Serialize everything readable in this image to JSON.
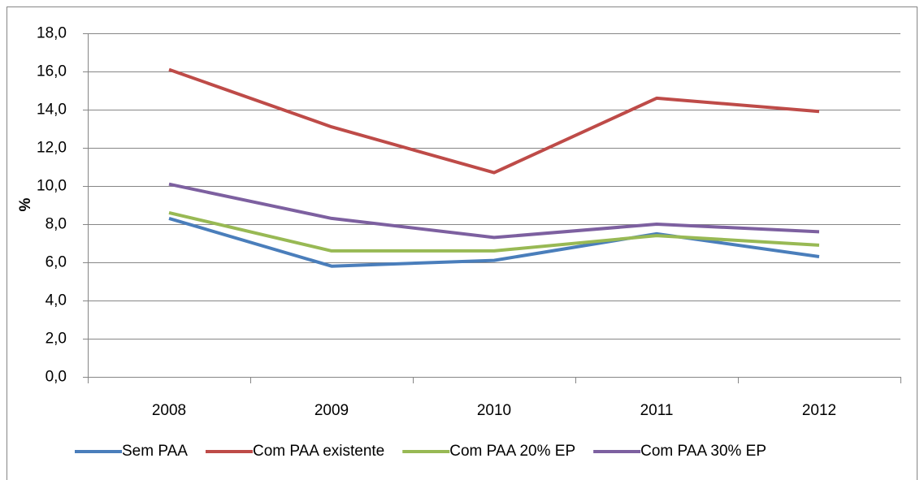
{
  "chart_data": {
    "type": "line",
    "y_label": "%",
    "categories": [
      "2008",
      "2009",
      "2010",
      "2011",
      "2012"
    ],
    "series": [
      {
        "name": "Sem PAA",
        "color": "#4a7ebb",
        "values": [
          8.3,
          5.8,
          6.1,
          7.5,
          6.3
        ]
      },
      {
        "name": "Com PAA existente",
        "color": "#be4b48",
        "values": [
          16.1,
          13.1,
          10.7,
          14.6,
          13.9
        ]
      },
      {
        "name": "Com PAA 20% EP",
        "color": "#98b954",
        "values": [
          8.6,
          6.6,
          6.6,
          7.4,
          6.9
        ]
      },
      {
        "name": "Com PAA 30% EP",
        "color": "#7d60a0",
        "values": [
          10.1,
          8.3,
          7.3,
          8.0,
          7.6
        ]
      }
    ],
    "ylim": [
      0,
      18
    ],
    "yticks": [
      {
        "value": 0,
        "label": "0,0"
      },
      {
        "value": 2,
        "label": "2,0"
      },
      {
        "value": 4,
        "label": "4,0"
      },
      {
        "value": 6,
        "label": "6,0"
      },
      {
        "value": 8,
        "label": "8,0"
      },
      {
        "value": 10,
        "label": "10,0"
      },
      {
        "value": 12,
        "label": "12,0"
      },
      {
        "value": 14,
        "label": "14,0"
      },
      {
        "value": 16,
        "label": "16,0"
      },
      {
        "value": 18,
        "label": "18,0"
      }
    ],
    "grid": true,
    "legend": "bottom"
  }
}
